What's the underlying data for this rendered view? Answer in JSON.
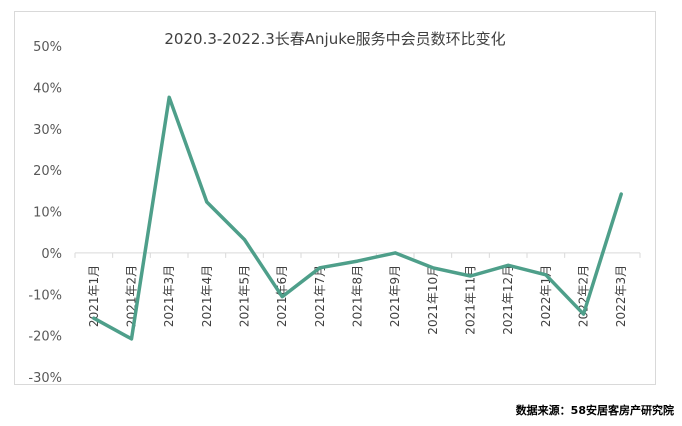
{
  "chart_data": {
    "type": "line",
    "title": "2020.3-2022.3长春Anjuke服务中会员数环比变化",
    "categories": [
      "2021年1月",
      "2021年2月",
      "2021年3月",
      "2021年4月",
      "2021年5月",
      "2021年6月",
      "2021年7月",
      "2021年8月",
      "2021年9月",
      "2021年10月",
      "2021年11月",
      "2021年12月",
      "2022年1月",
      "2022年2月",
      "2022年3月"
    ],
    "series": [
      {
        "values": [
          -15.8,
          -20.8,
          37.6,
          12.3,
          3.2,
          -10.6,
          -3.6,
          -2.0,
          0.0,
          -3.6,
          -5.6,
          -3.0,
          -5.3,
          -14.8,
          14.2
        ]
      }
    ],
    "y_ticks": [
      "50%",
      "40%",
      "30%",
      "20%",
      "10%",
      "0%",
      "-10%",
      "-20%",
      "-30%"
    ],
    "ylim": [
      -30,
      50
    ],
    "grid": false,
    "line_color": "#4e9f8a"
  },
  "source_note": "数据来源：58安居客房产研究院"
}
